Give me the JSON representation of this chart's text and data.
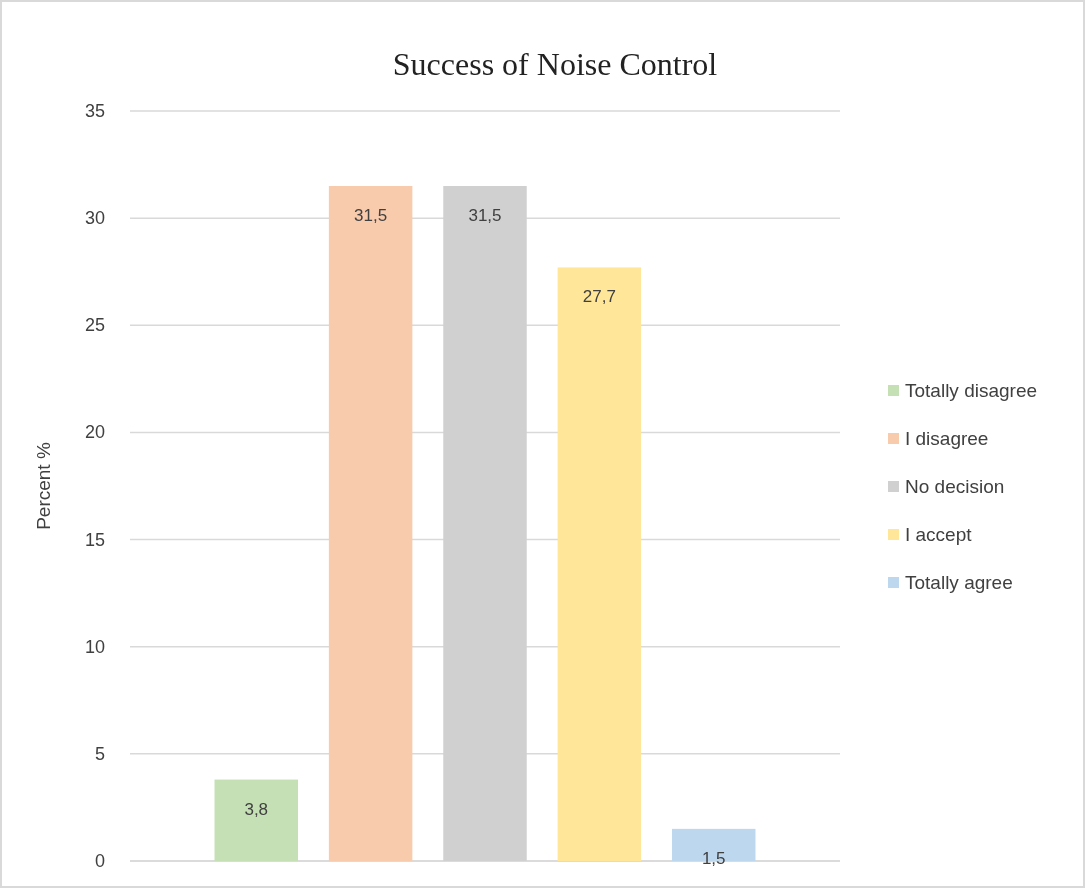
{
  "chart_data": {
    "type": "bar",
    "title": "Success of Noise Control",
    "ylabel": "Percent %",
    "categories": [
      null
    ],
    "series": [
      {
        "name": "Totally disagree",
        "color": "#c5e0b4",
        "values": [
          3.8
        ],
        "value_labels": [
          "3,8"
        ]
      },
      {
        "name": "I disagree",
        "color": "#f8cbad",
        "values": [
          31.5
        ],
        "value_labels": [
          "31,5"
        ]
      },
      {
        "name": "No decision",
        "color": "#d0d0d0",
        "values": [
          31.5
        ],
        "value_labels": [
          "31,5"
        ]
      },
      {
        "name": "I accept",
        "color": "#ffe699",
        "values": [
          27.7
        ],
        "value_labels": [
          "27,7"
        ]
      },
      {
        "name": "Totally agree",
        "color": "#bdd7ee",
        "values": [
          1.5
        ],
        "value_labels": [
          "1,5"
        ]
      }
    ],
    "ylim": [
      0,
      35
    ],
    "yticks": [
      0,
      5,
      10,
      15,
      20,
      25,
      30,
      35
    ],
    "grid": "y",
    "legend": "right"
  }
}
